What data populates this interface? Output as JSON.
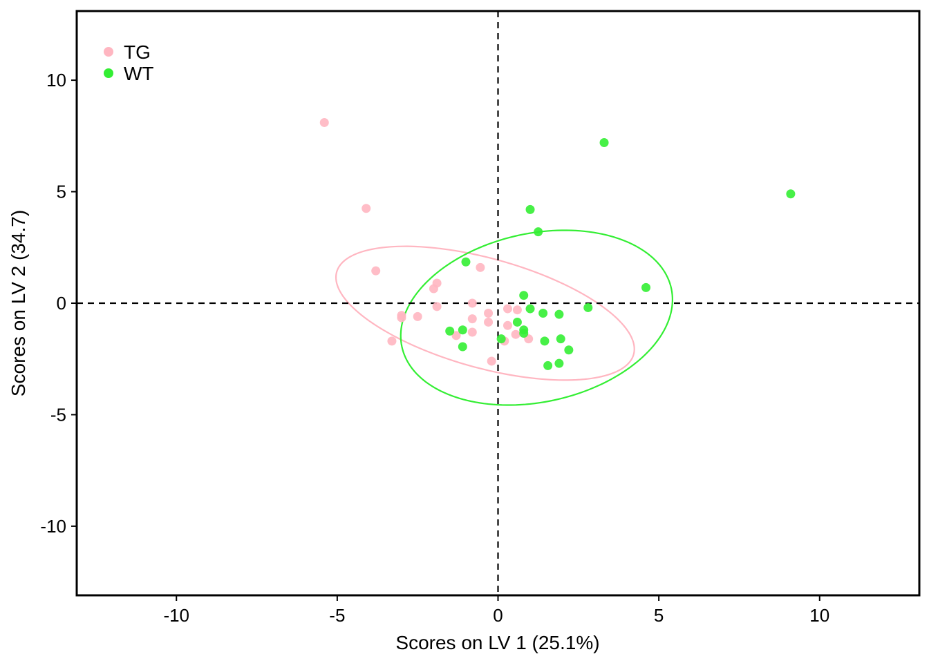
{
  "chart_data": {
    "type": "scatter",
    "xlabel": "Scores on LV 1 (25.1%)",
    "ylabel": "Scores on LV 2 (34.7)",
    "xlim": [
      -13.1,
      13.1
    ],
    "ylim": [
      -13.1,
      13.1
    ],
    "xticks": [
      -10,
      -5,
      0,
      5,
      10
    ],
    "yticks": [
      -10,
      -5,
      0,
      5,
      10
    ],
    "xtick_labels": [
      "-10",
      "-5",
      "0",
      "5",
      "10"
    ],
    "ytick_labels": [
      "-10",
      "-5",
      "0",
      "5",
      "10"
    ],
    "reference_lines": {
      "x": 0,
      "y": 0,
      "style": "dashed"
    },
    "grid": false,
    "legend": {
      "position": "top-left"
    },
    "series": [
      {
        "name": "TG",
        "color": "#FFB6C1",
        "points": [
          [
            -5.4,
            8.1
          ],
          [
            -4.1,
            4.25
          ],
          [
            -3.8,
            1.45
          ],
          [
            -3.3,
            -1.7
          ],
          [
            -3.0,
            -0.55
          ],
          [
            -3.0,
            -0.65
          ],
          [
            -2.5,
            -0.6
          ],
          [
            -2.0,
            0.65
          ],
          [
            -1.9,
            0.9
          ],
          [
            -1.9,
            -0.15
          ],
          [
            -1.3,
            -1.45
          ],
          [
            -0.8,
            0.0
          ],
          [
            -0.8,
            -0.7
          ],
          [
            -0.8,
            -1.3
          ],
          [
            -0.55,
            1.6
          ],
          [
            -0.3,
            -0.45
          ],
          [
            -0.3,
            -0.85
          ],
          [
            -0.2,
            -2.6
          ],
          [
            0.2,
            -1.7
          ],
          [
            0.3,
            -0.25
          ],
          [
            0.3,
            -1.0
          ],
          [
            0.6,
            -0.3
          ],
          [
            0.55,
            -1.4
          ],
          [
            0.95,
            -1.6
          ]
        ],
        "ellipse": {
          "center": [
            -0.4,
            -0.45
          ],
          "semi_major": 5.0,
          "semi_minor": 2.35,
          "angle_deg": -25
        }
      },
      {
        "name": "WT",
        "color": "#33EE33",
        "points": [
          [
            3.3,
            7.2
          ],
          [
            9.1,
            4.9
          ],
          [
            1.0,
            4.2
          ],
          [
            1.25,
            3.2
          ],
          [
            -1.0,
            1.85
          ],
          [
            4.6,
            0.7
          ],
          [
            0.8,
            0.35
          ],
          [
            1.0,
            -0.25
          ],
          [
            2.8,
            -0.2
          ],
          [
            1.4,
            -0.45
          ],
          [
            1.9,
            -0.5
          ],
          [
            0.6,
            -0.85
          ],
          [
            -1.5,
            -1.25
          ],
          [
            -1.1,
            -1.2
          ],
          [
            0.8,
            -1.2
          ],
          [
            0.8,
            -1.35
          ],
          [
            0.1,
            -1.6
          ],
          [
            1.45,
            -1.7
          ],
          [
            1.95,
            -1.6
          ],
          [
            -1.1,
            -1.95
          ],
          [
            2.2,
            -2.1
          ],
          [
            1.55,
            -2.8
          ],
          [
            1.9,
            -2.7
          ]
        ],
        "ellipse": {
          "center": [
            1.2,
            -0.65
          ],
          "semi_major": 4.5,
          "semi_minor": 3.6,
          "angle_deg": 35
        }
      }
    ]
  }
}
